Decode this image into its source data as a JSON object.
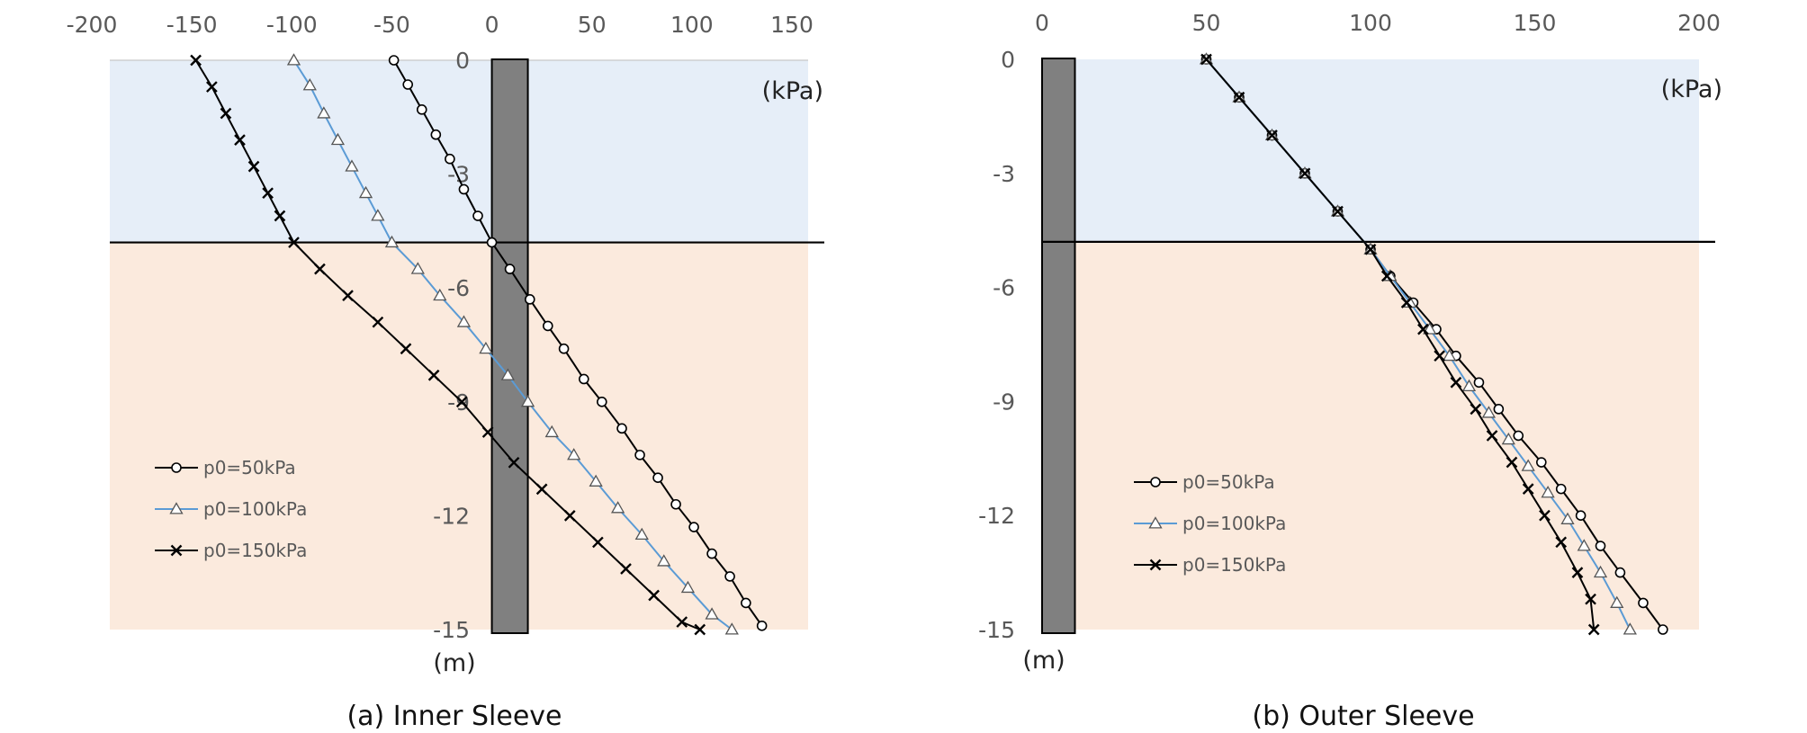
{
  "chart_data": [
    {
      "type": "line",
      "caption": "(a) Inner Sleeve",
      "xunit": "(kPa)",
      "yunit": "(m)",
      "xlim": [
        -200,
        150
      ],
      "ylim": [
        -15,
        0
      ],
      "x_ticks": [
        -200,
        -150,
        -100,
        -50,
        0,
        50,
        100,
        150
      ],
      "y_ticks": [
        0,
        -3,
        -6,
        -9,
        -12,
        -15
      ],
      "x_axis_position": "top",
      "layer_boundary_depth": -4.8,
      "sleeve_x_range": [
        0,
        18
      ],
      "colors": {
        "upper_layer": "#e6eef8",
        "lower_layer": "#fbeadd",
        "sleeve": "#808080"
      },
      "legend_placement": "lower-left",
      "series": [
        {
          "name": "p0=50kPa",
          "marker": "circle",
          "color": "#000000",
          "points": [
            [
              -49,
              0
            ],
            [
              -42,
              -0.64
            ],
            [
              -35,
              -1.3
            ],
            [
              -28,
              -1.96
            ],
            [
              -21,
              -2.6
            ],
            [
              -14,
              -3.4
            ],
            [
              -7,
              -4.1
            ],
            [
              0,
              -4.8
            ],
            [
              9,
              -5.5
            ],
            [
              19,
              -6.3
            ],
            [
              28,
              -7.0
            ],
            [
              36,
              -7.6
            ],
            [
              46,
              -8.4
            ],
            [
              55,
              -9.0
            ],
            [
              65,
              -9.7
            ],
            [
              74,
              -10.4
            ],
            [
              83,
              -11.0
            ],
            [
              92,
              -11.7
            ],
            [
              101,
              -12.3
            ],
            [
              110,
              -13.0
            ],
            [
              119,
              -13.6
            ],
            [
              127,
              -14.3
            ],
            [
              135,
              -14.9
            ]
          ]
        },
        {
          "name": "p0=100kPa",
          "marker": "triangle",
          "color": "#5b9bd5",
          "points": [
            [
              -99,
              0
            ],
            [
              -91,
              -0.66
            ],
            [
              -84,
              -1.4
            ],
            [
              -77,
              -2.1
            ],
            [
              -70,
              -2.8
            ],
            [
              -63,
              -3.5
            ],
            [
              -57,
              -4.1
            ],
            [
              -50,
              -4.8
            ],
            [
              -37,
              -5.5
            ],
            [
              -26,
              -6.2
            ],
            [
              -14,
              -6.9
            ],
            [
              -3,
              -7.6
            ],
            [
              8,
              -8.3
            ],
            [
              18,
              -9.0
            ],
            [
              30,
              -9.8
            ],
            [
              41,
              -10.4
            ],
            [
              52,
              -11.1
            ],
            [
              63,
              -11.8
            ],
            [
              75,
              -12.5
            ],
            [
              86,
              -13.2
            ],
            [
              98,
              -13.9
            ],
            [
              110,
              -14.6
            ],
            [
              120,
              -15.0
            ]
          ]
        },
        {
          "name": "p0=150kPa",
          "marker": "cross",
          "color": "#000000",
          "points": [
            [
              -148,
              0
            ],
            [
              -140,
              -0.7
            ],
            [
              -133,
              -1.4
            ],
            [
              -126,
              -2.1
            ],
            [
              -119,
              -2.8
            ],
            [
              -112,
              -3.5
            ],
            [
              -106,
              -4.1
            ],
            [
              -99,
              -4.8
            ],
            [
              -86,
              -5.5
            ],
            [
              -72,
              -6.2
            ],
            [
              -57,
              -6.9
            ],
            [
              -43,
              -7.6
            ],
            [
              -29,
              -8.3
            ],
            [
              -15,
              -9.0
            ],
            [
              -2,
              -9.8
            ],
            [
              11,
              -10.6
            ],
            [
              25,
              -11.3
            ],
            [
              39,
              -12.0
            ],
            [
              53,
              -12.7
            ],
            [
              67,
              -13.4
            ],
            [
              81,
              -14.1
            ],
            [
              95,
              -14.8
            ],
            [
              104,
              -15.0
            ]
          ]
        }
      ]
    },
    {
      "type": "line",
      "caption": "(b) Outer Sleeve",
      "xunit": "(kPa)",
      "yunit": "(m)",
      "xlim": [
        0,
        200
      ],
      "ylim": [
        -15,
        0
      ],
      "x_ticks": [
        0,
        50,
        100,
        150,
        200
      ],
      "y_ticks": [
        0,
        -3,
        -6,
        -9,
        -12,
        -15
      ],
      "x_axis_position": "top",
      "layer_boundary_depth": -4.8,
      "sleeve_x_range": [
        0,
        10
      ],
      "colors": {
        "upper_layer": "#e6eef8",
        "lower_layer": "#fbeadd",
        "sleeve": "#808080"
      },
      "legend_placement": "lower-left",
      "series": [
        {
          "name": "p0=50kPa",
          "marker": "circle",
          "color": "#000000",
          "points": [
            [
              50,
              0
            ],
            [
              60,
              -1.0
            ],
            [
              70,
              -2.0
            ],
            [
              80,
              -3.0
            ],
            [
              90,
              -4.0
            ],
            [
              100,
              -5.0
            ],
            [
              106,
              -5.7
            ],
            [
              113,
              -6.4
            ],
            [
              120,
              -7.1
            ],
            [
              126,
              -7.8
            ],
            [
              133,
              -8.5
            ],
            [
              139,
              -9.2
            ],
            [
              145,
              -9.9
            ],
            [
              152,
              -10.6
            ],
            [
              158,
              -11.3
            ],
            [
              164,
              -12.0
            ],
            [
              170,
              -12.8
            ],
            [
              176,
              -13.5
            ],
            [
              183,
              -14.3
            ],
            [
              189,
              -15.0
            ]
          ]
        },
        {
          "name": "p0=100kPa",
          "marker": "triangle",
          "color": "#5b9bd5",
          "points": [
            [
              50,
              0
            ],
            [
              60,
              -1.0
            ],
            [
              70,
              -2.0
            ],
            [
              80,
              -3.0
            ],
            [
              90,
              -4.0
            ],
            [
              100,
              -5.0
            ],
            [
              106,
              -5.7
            ],
            [
              112,
              -6.4
            ],
            [
              118,
              -7.1
            ],
            [
              124,
              -7.8
            ],
            [
              130,
              -8.6
            ],
            [
              136,
              -9.3
            ],
            [
              142,
              -10.0
            ],
            [
              148,
              -10.7
            ],
            [
              154,
              -11.4
            ],
            [
              160,
              -12.1
            ],
            [
              165,
              -12.8
            ],
            [
              170,
              -13.5
            ],
            [
              175,
              -14.3
            ],
            [
              179,
              -15.0
            ]
          ]
        },
        {
          "name": "p0=150kPa",
          "marker": "cross",
          "color": "#000000",
          "points": [
            [
              50,
              0
            ],
            [
              60,
              -1.0
            ],
            [
              70,
              -2.0
            ],
            [
              80,
              -3.0
            ],
            [
              90,
              -4.0
            ],
            [
              100,
              -5.0
            ],
            [
              105,
              -5.7
            ],
            [
              111,
              -6.4
            ],
            [
              116,
              -7.1
            ],
            [
              121,
              -7.8
            ],
            [
              126,
              -8.5
            ],
            [
              132,
              -9.2
            ],
            [
              137,
              -9.9
            ],
            [
              143,
              -10.6
            ],
            [
              148,
              -11.3
            ],
            [
              153,
              -12.0
            ],
            [
              158,
              -12.7
            ],
            [
              163,
              -13.5
            ],
            [
              167,
              -14.2
            ],
            [
              168,
              -15.0
            ]
          ]
        }
      ]
    }
  ]
}
